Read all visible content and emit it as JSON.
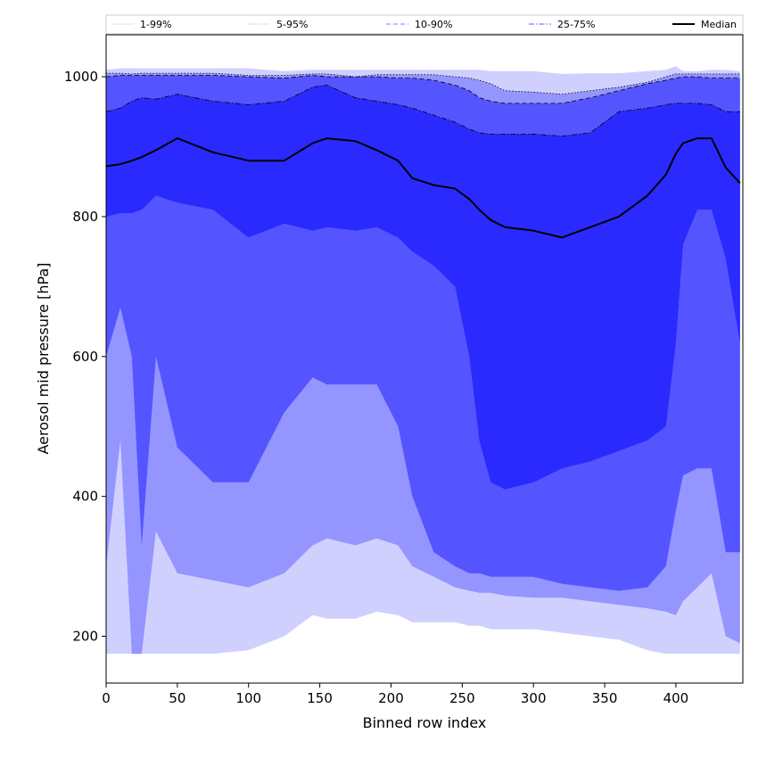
{
  "chart_data": {
    "type": "area",
    "xlabel": "Binned row index",
    "ylabel": "Aerosol mid pressure [hPa]",
    "xlim": [
      0,
      447
    ],
    "ylim": [
      133,
      1060
    ],
    "x_ticks": [
      0,
      50,
      100,
      150,
      200,
      250,
      300,
      350,
      400
    ],
    "y_ticks": [
      200,
      400,
      600,
      800,
      1000
    ],
    "legend_position": "top, spanning full width",
    "x": [
      0,
      10,
      18,
      25,
      35,
      50,
      75,
      100,
      125,
      145,
      155,
      175,
      190,
      205,
      215,
      230,
      245,
      255,
      262,
      270,
      280,
      300,
      320,
      340,
      360,
      380,
      393,
      400,
      405,
      415,
      425,
      435,
      445
    ],
    "bands": [
      {
        "name": "1-99%",
        "color": "#d0d0ff",
        "line_style": "solid",
        "lower": [
          175,
          175,
          175,
          175,
          175,
          175,
          175,
          180,
          200,
          230,
          225,
          225,
          235,
          230,
          220,
          220,
          220,
          215,
          215,
          210,
          210,
          210,
          205,
          200,
          195,
          180,
          175,
          175,
          175,
          175,
          175,
          175,
          175
        ],
        "upper": [
          1010,
          1012,
          1012,
          1012,
          1012,
          1012,
          1012,
          1012,
          1008,
          1010,
          1010,
          1010,
          1010,
          1010,
          1010,
          1010,
          1010,
          1010,
          1010,
          1008,
          1008,
          1008,
          1004,
          1005,
          1005,
          1008,
          1010,
          1015,
          1008,
          1008,
          1010,
          1010,
          1008
        ]
      },
      {
        "name": "5-95%",
        "color": "#9595ff",
        "line_style": "dotted",
        "lower": [
          300,
          480,
          175,
          175,
          350,
          290,
          280,
          270,
          290,
          330,
          340,
          330,
          340,
          330,
          300,
          285,
          270,
          265,
          262,
          262,
          258,
          255,
          255,
          250,
          245,
          240,
          235,
          230,
          250,
          270,
          290,
          200,
          190
        ],
        "upper": [
          1005,
          1005,
          1004,
          1005,
          1005,
          1005,
          1005,
          1002,
          1002,
          1004,
          1004,
          1000,
          1003,
          1003,
          1003,
          1003,
          1000,
          998,
          995,
          990,
          980,
          978,
          975,
          980,
          985,
          992,
          1000,
          1004,
          1004,
          1004,
          1004,
          1004,
          1004
        ]
      },
      {
        "name": "10-90%",
        "color": "#5555ff",
        "line_style": "dashed",
        "lower": [
          600,
          670,
          600,
          330,
          600,
          470,
          420,
          420,
          520,
          570,
          560,
          560,
          560,
          500,
          400,
          320,
          300,
          290,
          290,
          285,
          285,
          285,
          275,
          270,
          265,
          270,
          300,
          380,
          430,
          440,
          440,
          320,
          320
        ],
        "upper": [
          1000,
          1002,
          1002,
          1002,
          1002,
          1002,
          1002,
          1000,
          998,
          1002,
          1000,
          1000,
          1000,
          998,
          998,
          995,
          988,
          980,
          970,
          965,
          962,
          962,
          962,
          970,
          980,
          990,
          995,
          998,
          1000,
          1000,
          998,
          998,
          998
        ]
      },
      {
        "name": "25-75%",
        "color": "#2a2aff",
        "line_style": "dashdot",
        "lower": [
          800,
          805,
          805,
          810,
          830,
          820,
          810,
          770,
          790,
          780,
          785,
          780,
          785,
          770,
          750,
          730,
          700,
          600,
          480,
          420,
          410,
          420,
          440,
          450,
          465,
          480,
          500,
          620,
          760,
          810,
          810,
          740,
          620
        ],
        "upper": [
          950,
          955,
          965,
          970,
          968,
          975,
          965,
          960,
          965,
          985,
          988,
          970,
          965,
          960,
          955,
          945,
          935,
          925,
          920,
          918,
          918,
          918,
          915,
          920,
          950,
          955,
          960,
          962,
          962,
          962,
          960,
          950,
          950
        ]
      }
    ],
    "series": [
      {
        "name": "Median",
        "color": "#000000",
        "values": [
          872,
          875,
          880,
          885,
          895,
          912,
          892,
          880,
          880,
          905,
          912,
          908,
          895,
          880,
          855,
          845,
          840,
          825,
          810,
          795,
          785,
          780,
          770,
          785,
          800,
          830,
          860,
          890,
          905,
          912,
          912,
          870,
          848
        ]
      }
    ]
  }
}
